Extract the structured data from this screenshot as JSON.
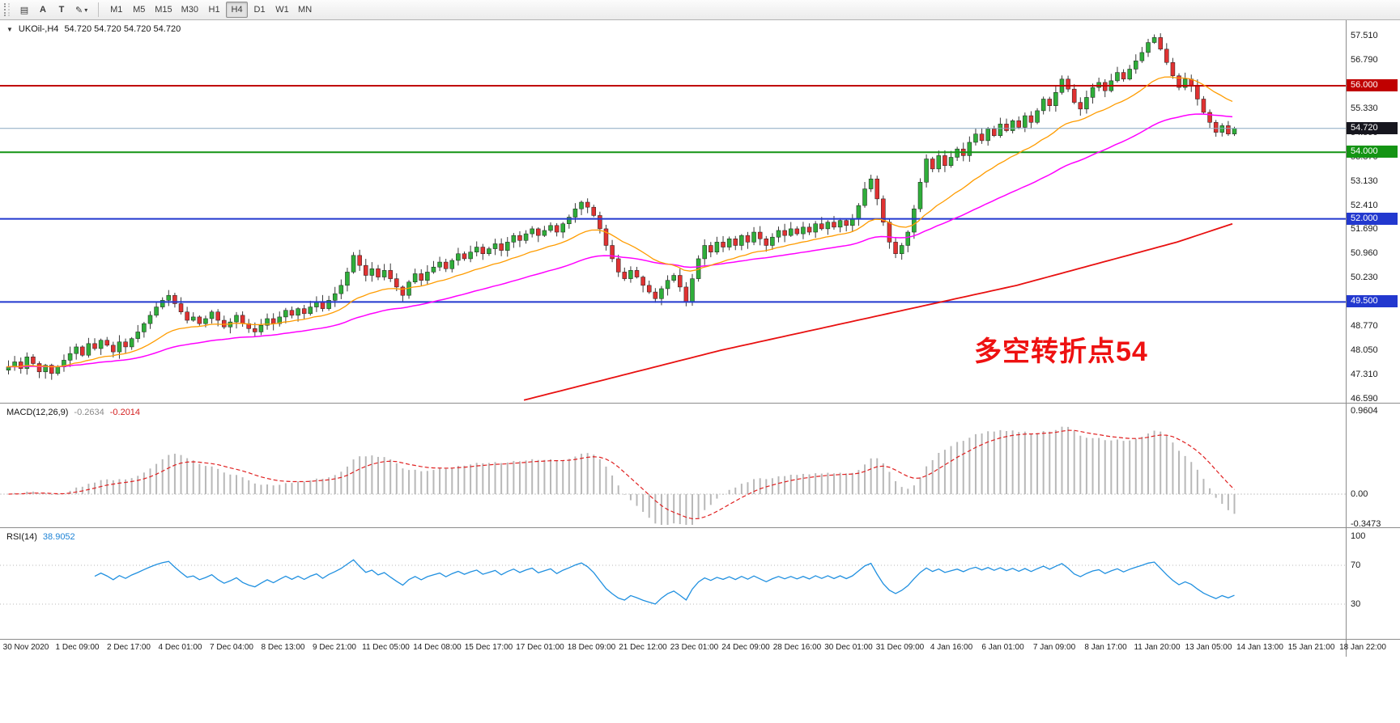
{
  "toolbar": {
    "tool_buttons": [
      {
        "name": "windows-layout-icon",
        "glyph": "▤"
      },
      {
        "name": "arrow-tool-button",
        "glyph": "A"
      },
      {
        "name": "text-tool-button",
        "glyph": "T"
      },
      {
        "name": "color-tool-button",
        "glyph": "✎"
      }
    ],
    "dropdown_arrow": "▾",
    "timeframes": [
      "M1",
      "M5",
      "M15",
      "M30",
      "H1",
      "H4",
      "D1",
      "W1",
      "MN"
    ],
    "active_timeframe": "H4"
  },
  "chart": {
    "collapse_arrow": "▼",
    "title": "UKOil-,H4",
    "ohlc": "54.720 54.720 54.720 54.720",
    "annotation": "多空转折点54",
    "annotation_color": "#ee1111"
  },
  "price_axis": {
    "ticks": [
      "57.510",
      "56.790",
      "56.070",
      "55.330",
      "54.590",
      "53.870",
      "53.130",
      "52.410",
      "51.690",
      "50.960",
      "50.230",
      "49.500",
      "48.770",
      "48.050",
      "47.310",
      "46.590"
    ],
    "tick_values": [
      57.51,
      56.79,
      56.07,
      55.33,
      54.59,
      53.87,
      53.13,
      52.41,
      51.69,
      50.96,
      50.23,
      49.5,
      48.77,
      48.05,
      47.31,
      46.59
    ],
    "badges": [
      {
        "label": "56.000",
        "value": 56.0,
        "bg": "#c00000"
      },
      {
        "label": "54.720",
        "value": 54.72,
        "bg": "#16161e"
      },
      {
        "label": "54.000",
        "value": 54.0,
        "bg": "#149414"
      },
      {
        "label": "52.000",
        "value": 52.0,
        "bg": "#2238cf"
      },
      {
        "label": "49.500",
        "value": 49.5,
        "bg": "#2238cf"
      }
    ]
  },
  "macd_panel": {
    "label": "MACD(12,26,9)",
    "main_value": "-0.2634",
    "signal_value": "-0.2014",
    "scale": [
      {
        "label": "0.9604",
        "value": 0.9604
      },
      {
        "label": "0.00",
        "value": 0
      },
      {
        "label": "-0.3473",
        "value": -0.3473
      }
    ]
  },
  "rsi_panel": {
    "label": "RSI(14)",
    "value": "38.9052",
    "scale": [
      {
        "label": "100",
        "value": 100
      },
      {
        "label": "70",
        "value": 70
      },
      {
        "label": "30",
        "value": 30
      }
    ]
  },
  "chart_data": {
    "type": "candlestick",
    "symbol": "UKOil-",
    "timeframe": "H4",
    "current_price": 54.72,
    "price_range": [
      46.47,
      57.97
    ],
    "first_open": 47.45,
    "closes": [
      47.55,
      47.7,
      47.5,
      47.85,
      47.65,
      47.4,
      47.6,
      47.35,
      47.55,
      47.75,
      47.95,
      48.15,
      47.9,
      48.25,
      48.1,
      48.35,
      48.2,
      48.0,
      48.3,
      48.15,
      48.4,
      48.6,
      48.85,
      49.1,
      49.35,
      49.55,
      49.7,
      49.45,
      49.2,
      48.95,
      49.05,
      48.85,
      49.0,
      49.2,
      48.95,
      48.75,
      48.9,
      49.1,
      48.85,
      48.7,
      48.6,
      48.8,
      49.0,
      48.85,
      49.05,
      49.25,
      49.1,
      49.3,
      49.15,
      49.35,
      49.5,
      49.3,
      49.55,
      49.75,
      50.0,
      50.4,
      50.9,
      50.6,
      50.3,
      50.5,
      50.25,
      50.45,
      50.2,
      49.95,
      49.7,
      50.1,
      50.35,
      50.15,
      50.4,
      50.55,
      50.7,
      50.5,
      50.75,
      50.95,
      50.8,
      51.0,
      51.15,
      50.95,
      51.1,
      51.25,
      51.05,
      51.3,
      51.5,
      51.35,
      51.55,
      51.7,
      51.5,
      51.65,
      51.8,
      51.6,
      51.85,
      52.05,
      52.3,
      52.5,
      52.35,
      52.1,
      51.7,
      51.2,
      50.8,
      50.4,
      50.2,
      50.45,
      50.25,
      50.0,
      49.8,
      49.6,
      49.9,
      50.15,
      50.3,
      49.95,
      49.5,
      50.2,
      50.8,
      51.2,
      51.0,
      51.3,
      51.15,
      51.4,
      51.2,
      51.5,
      51.3,
      51.6,
      51.4,
      51.2,
      51.45,
      51.65,
      51.5,
      51.7,
      51.55,
      51.75,
      51.6,
      51.85,
      51.7,
      51.9,
      51.75,
      51.95,
      51.8,
      52.0,
      52.4,
      52.9,
      53.2,
      52.6,
      51.9,
      51.3,
      50.95,
      51.2,
      51.6,
      52.3,
      53.1,
      53.8,
      53.5,
      53.9,
      53.6,
      53.85,
      54.1,
      53.9,
      54.3,
      54.55,
      54.35,
      54.7,
      54.5,
      54.85,
      54.65,
      54.95,
      54.75,
      55.1,
      54.9,
      55.25,
      55.6,
      55.4,
      55.8,
      56.2,
      55.9,
      55.5,
      55.3,
      55.65,
      55.95,
      56.1,
      55.85,
      56.15,
      56.4,
      56.2,
      56.5,
      56.75,
      57.0,
      57.3,
      57.45,
      57.1,
      56.7,
      56.3,
      55.95,
      56.2,
      56.0,
      55.6,
      55.2,
      54.9,
      54.6,
      54.8,
      54.55,
      54.72
    ],
    "levels": [
      {
        "price": 56.0,
        "color": "#c00000",
        "width": 2
      },
      {
        "price": 54.72,
        "color": "#8aa8c0",
        "width": 1
      },
      {
        "price": 54.0,
        "color": "#149414",
        "width": 2
      },
      {
        "price": 52.0,
        "color": "#2238cf",
        "width": 2
      },
      {
        "price": 49.5,
        "color": "#2238cf",
        "width": 2
      }
    ],
    "moving_averages": {
      "fast": {
        "period": 20,
        "color": "#ff9c00"
      },
      "mid": {
        "period": 50,
        "color": "#ff00ff"
      },
      "slow": {
        "color": "#e81010",
        "anchors": [
          [
            84,
            46.55
          ],
          [
            100,
            47.3
          ],
          [
            116,
            48.05
          ],
          [
            132,
            48.7
          ],
          [
            148,
            49.35
          ],
          [
            164,
            50.0
          ],
          [
            178,
            50.7
          ],
          [
            190,
            51.3
          ],
          [
            199,
            51.85
          ]
        ]
      }
    },
    "macd": {
      "fast": 12,
      "slow": 26,
      "signal": 9,
      "histogram_color": "#b8b8b8",
      "signal_color": "#e02020"
    },
    "rsi": {
      "period": 14,
      "color": "#2090e0",
      "levels": [
        70,
        30
      ]
    },
    "up_color": "#2fae3a",
    "down_color": "#e03232",
    "wick_color": "#3a3a3a",
    "time_labels": [
      "30 Nov 2020",
      "1 Dec 09:00",
      "2 Dec 17:00",
      "4 Dec 01:00",
      "7 Dec 04:00",
      "8 Dec 13:00",
      "9 Dec 21:00",
      "11 Dec 05:00",
      "14 Dec 08:00",
      "15 Dec 17:00",
      "17 Dec 01:00",
      "18 Dec 09:00",
      "21 Dec 12:00",
      "23 Dec 01:00",
      "24 Dec 09:00",
      "28 Dec 16:00",
      "30 Dec 01:00",
      "31 Dec 09:00",
      "4 Jan 16:00",
      "6 Jan 01:00",
      "7 Jan 09:00",
      "8 Jan 17:00",
      "11 Jan 20:00",
      "13 Jan 05:00",
      "14 Jan 13:00",
      "15 Jan 21:00",
      "18 Jan 22:00"
    ]
  }
}
